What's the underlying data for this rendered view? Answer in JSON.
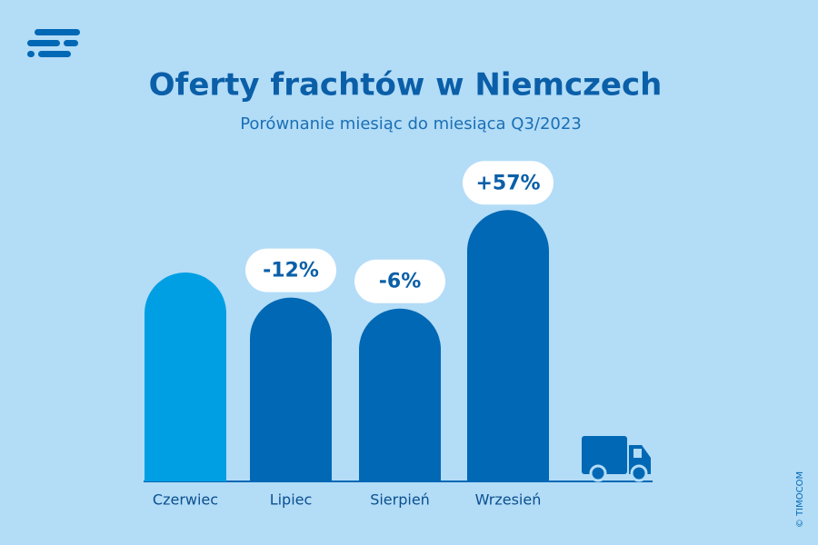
{
  "chart_data": {
    "type": "bar",
    "title": "Oferty frachtów w Niemczech",
    "subtitle": "Porównanie miesiąc do miesiąca Q3/2023",
    "categories": [
      "Czerwiec",
      "Lipiec",
      "Sierpień",
      "Wrzesień"
    ],
    "values": [
      null,
      -12,
      -6,
      57
    ],
    "value_labels": [
      null,
      "-12%",
      "-6%",
      "+57%"
    ],
    "colors": [
      "#009fe3",
      "#0068b4",
      "#0068b4",
      "#0068b4"
    ],
    "source": "© TIMOCOM"
  }
}
